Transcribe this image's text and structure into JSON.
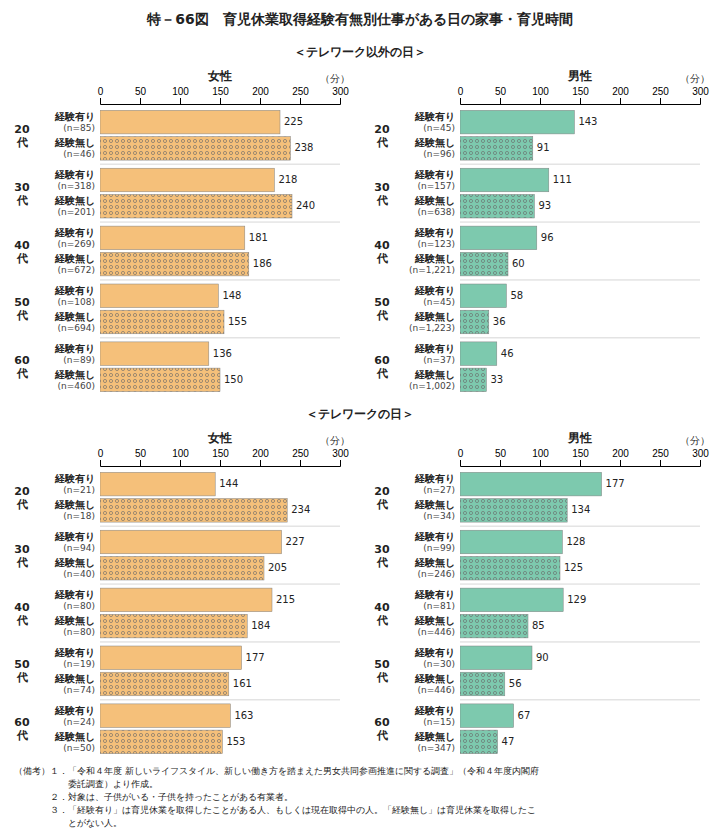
{
  "title": "特－66図　育児休業取得経験有無別仕事がある日の家事・育児時間",
  "notes": [
    "（備考）１．「令和４年度 新しいライフスタイル、新しい働き方を踏まえた男女共同参画推進に関する調査」（令和４年度内閣府",
    "　　　　　　委託調査）より作成。",
    "　　　　２．対象は、子供がいる・子供を持ったことがある有業者。",
    "　　　　３．「経験有り」は育児休業を取得したことがある人、もしくは現在取得中の人。「経験無し」は育児休業を取得したこ",
    "　　　　　　とがない人。"
  ],
  "chart_data": [
    {
      "type": "bar",
      "orientation": "horizontal",
      "subtitle": "＜テレワーク以外の日＞",
      "title": "女性",
      "x_label": "（分）",
      "categories": [
        "20\n代",
        "30\n代",
        "40\n代",
        "50\n代",
        "60\n代"
      ],
      "series": [
        {
          "name": "経験有り",
          "color": "#f5c07a",
          "values": [
            225,
            218,
            181,
            148,
            136
          ],
          "n_labels": [
            "(n=85)",
            "(n=318)",
            "(n=269)",
            "(n=108)",
            "(n=89)"
          ]
        },
        {
          "name": "経験無し",
          "color": "#f5c07a",
          "values": [
            238,
            240,
            186,
            155,
            150
          ],
          "n_labels": [
            "(n=46)",
            "(n=201)",
            "(n=672)",
            "(n=694)",
            "(n=460)"
          ]
        }
      ],
      "xlim": [
        0,
        300
      ],
      "xticks": [
        0,
        50,
        100,
        150,
        200,
        250,
        300
      ],
      "data_labels": true,
      "grid": false
    },
    {
      "type": "bar",
      "orientation": "horizontal",
      "title": "男性",
      "x_label": "（分）",
      "categories": [
        "20\n代",
        "30\n代",
        "40\n代",
        "50\n代",
        "60\n代"
      ],
      "series": [
        {
          "name": "経験有り",
          "color": "#7dc9ae",
          "values": [
            143,
            111,
            96,
            58,
            46
          ],
          "n_labels": [
            "(n=45)",
            "(n=157)",
            "(n=123)",
            "(n=45)",
            "(n=37)"
          ]
        },
        {
          "name": "経験無し",
          "color": "#7dc9ae",
          "values": [
            91,
            93,
            60,
            36,
            33
          ],
          "n_labels": [
            "(n=96)",
            "(n=638)",
            "(n=1,221)",
            "(n=1,223)",
            "(n=1,002)"
          ]
        }
      ],
      "xlim": [
        0,
        300
      ],
      "xticks": [
        0,
        50,
        100,
        150,
        200,
        250,
        300
      ],
      "data_labels": true,
      "grid": false
    },
    {
      "type": "bar",
      "orientation": "horizontal",
      "subtitle": "＜テレワークの日＞",
      "title": "女性",
      "x_label": "（分）",
      "categories": [
        "20\n代",
        "30\n代",
        "40\n代",
        "50\n代",
        "60\n代"
      ],
      "series": [
        {
          "name": "経験有り",
          "color": "#f5c07a",
          "values": [
            144,
            227,
            215,
            177,
            163
          ],
          "n_labels": [
            "(n=21)",
            "(n=94)",
            "(n=80)",
            "(n=19)",
            "(n=24)"
          ]
        },
        {
          "name": "経験無し",
          "color": "#f5c07a",
          "values": [
            234,
            205,
            184,
            161,
            153
          ],
          "n_labels": [
            "(n=18)",
            "(n=40)",
            "(n=80)",
            "(n=74)",
            "(n=50)"
          ]
        }
      ],
      "xlim": [
        0,
        300
      ],
      "xticks": [
        0,
        50,
        100,
        150,
        200,
        250,
        300
      ],
      "data_labels": true,
      "grid": false
    },
    {
      "type": "bar",
      "orientation": "horizontal",
      "title": "男性",
      "x_label": "（分）",
      "categories": [
        "20\n代",
        "30\n代",
        "40\n代",
        "50\n代",
        "60\n代"
      ],
      "series": [
        {
          "name": "経験有り",
          "color": "#7dc9ae",
          "values": [
            177,
            128,
            129,
            90,
            67
          ],
          "n_labels": [
            "(n=27)",
            "(n=99)",
            "(n=81)",
            "(n=30)",
            "(n=15)"
          ]
        },
        {
          "name": "経験無し",
          "color": "#7dc9ae",
          "values": [
            134,
            125,
            85,
            56,
            47
          ],
          "n_labels": [
            "(n=34)",
            "(n=246)",
            "(n=446)",
            "(n=446)",
            "(n=347)"
          ]
        }
      ],
      "xlim": [
        0,
        300
      ],
      "xticks": [
        0,
        50,
        100,
        150,
        200,
        250,
        300
      ],
      "data_labels": true,
      "grid": false
    }
  ]
}
